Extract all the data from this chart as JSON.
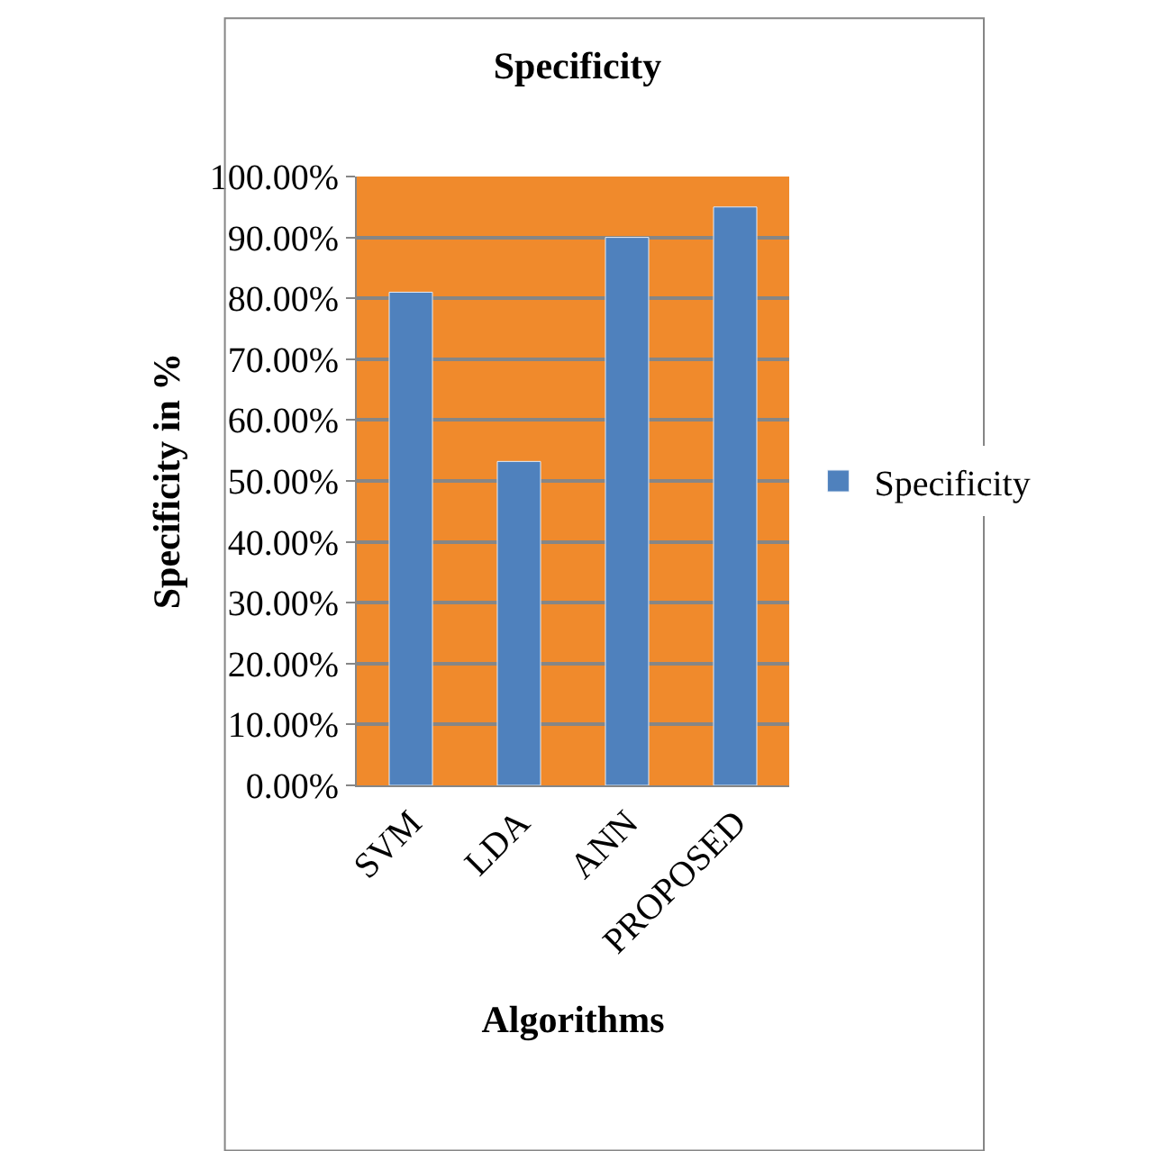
{
  "chart_data": {
    "type": "bar",
    "title": "Specificity",
    "xlabel": "Algorithms",
    "ylabel": "Specificity in %",
    "categories": [
      "SVM",
      "LDA",
      "ANN",
      "PROPOSED"
    ],
    "series": [
      {
        "name": "Specificity",
        "color": "#4f81bd",
        "values": [
          81,
          53.2,
          90,
          95
        ]
      }
    ],
    "ylim": [
      0,
      100
    ],
    "yticks": [
      {
        "value": 0,
        "label": "0.00%"
      },
      {
        "value": 10,
        "label": "10.00%"
      },
      {
        "value": 20,
        "label": "20.00%"
      },
      {
        "value": 30,
        "label": "30.00%"
      },
      {
        "value": 40,
        "label": "40.00%"
      },
      {
        "value": 50,
        "label": "50.00%"
      },
      {
        "value": 60,
        "label": "60.00%"
      },
      {
        "value": 70,
        "label": "70.00%"
      },
      {
        "value": 80,
        "label": "80.00%"
      },
      {
        "value": 90,
        "label": "90.00%"
      },
      {
        "value": 100,
        "label": "100.00%"
      }
    ],
    "grid": "y",
    "legend": "right"
  }
}
